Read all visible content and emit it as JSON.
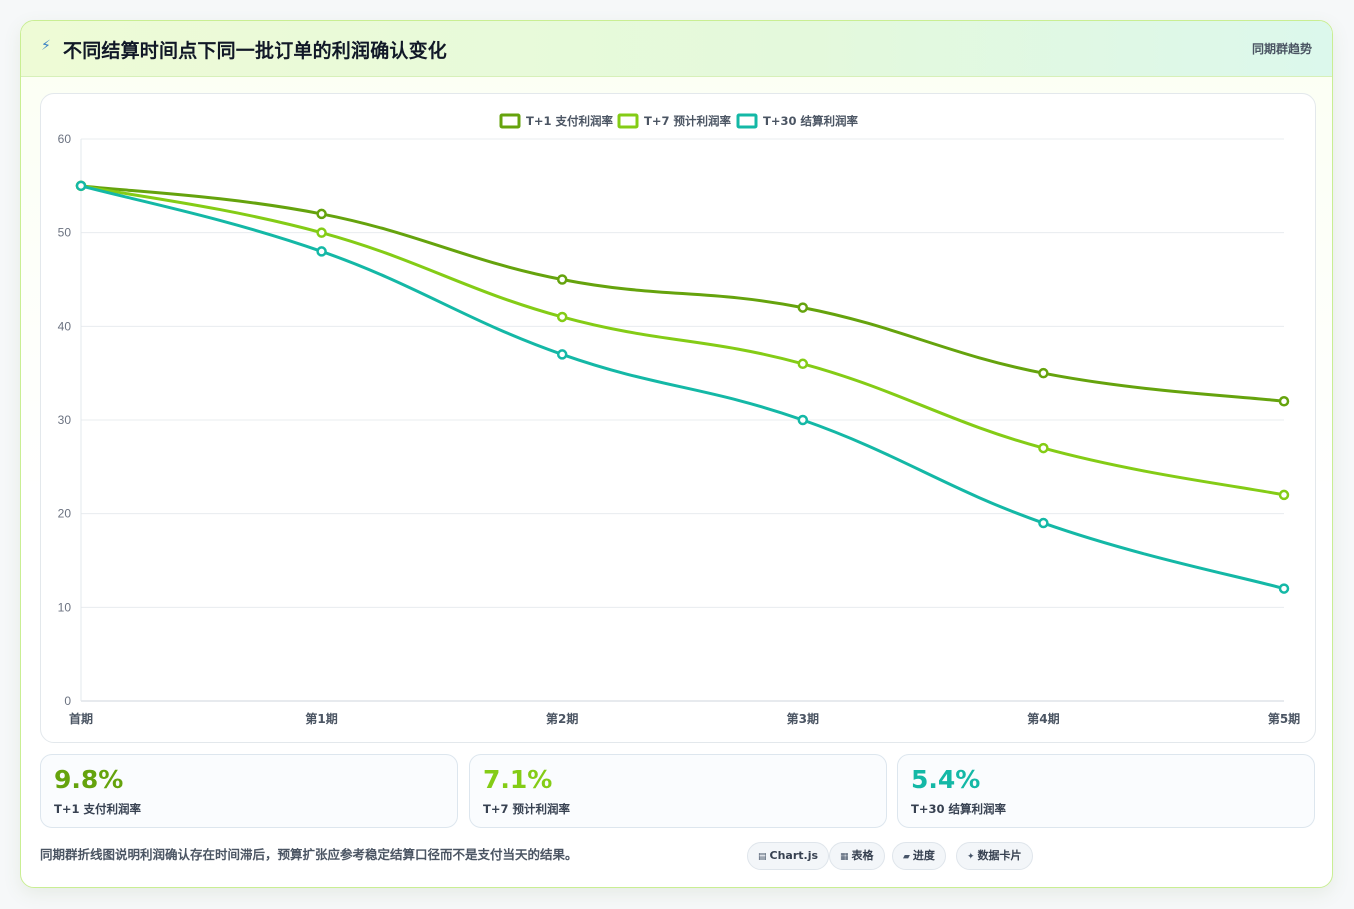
{
  "header": {
    "icon": "bolt-icon",
    "title": "不同结算时间点下同一批订单的利润确认变化",
    "tag": "同期群趋势"
  },
  "chart_data": {
    "type": "line",
    "categories": [
      "首期",
      "第1期",
      "第2期",
      "第3期",
      "第4期",
      "第5期"
    ],
    "series": [
      {
        "name": "T+1 支付利润率",
        "values": [
          55,
          52,
          45,
          42,
          35,
          32
        ],
        "color": "#65a30d"
      },
      {
        "name": "T+7 预计利润率",
        "values": [
          55,
          50,
          41,
          36,
          27,
          22
        ],
        "color": "#84cc16"
      },
      {
        "name": "T+30 结算利润率",
        "values": [
          55,
          48,
          37,
          30,
          19,
          12
        ],
        "color": "#14b8a6"
      }
    ],
    "ylim": [
      0,
      60
    ],
    "yticks": [
      0,
      10,
      20,
      30,
      40,
      50,
      60
    ],
    "legend": "top-center",
    "grid": true
  },
  "stats": [
    {
      "value": "9.8%",
      "label": "T+1 支付利润率",
      "color": "#65a30d"
    },
    {
      "value": "7.1%",
      "label": "T+7 预计利润率",
      "color": "#84cc16"
    },
    {
      "value": "5.4%",
      "label": "T+30 结算利润率",
      "color": "#14b8a6"
    }
  ],
  "footer": {
    "note": "同期群折线图说明利润确认存在时间滞后，预算扩张应参考稳定结算口径而不是支付当天的结果。",
    "pills": [
      {
        "icon": "▤",
        "label": "Chart.js"
      },
      {
        "icon": "▦",
        "label": "表格"
      },
      {
        "icon": "▰",
        "label": "进度"
      },
      {
        "icon": "✦",
        "label": "数据卡片"
      }
    ]
  }
}
